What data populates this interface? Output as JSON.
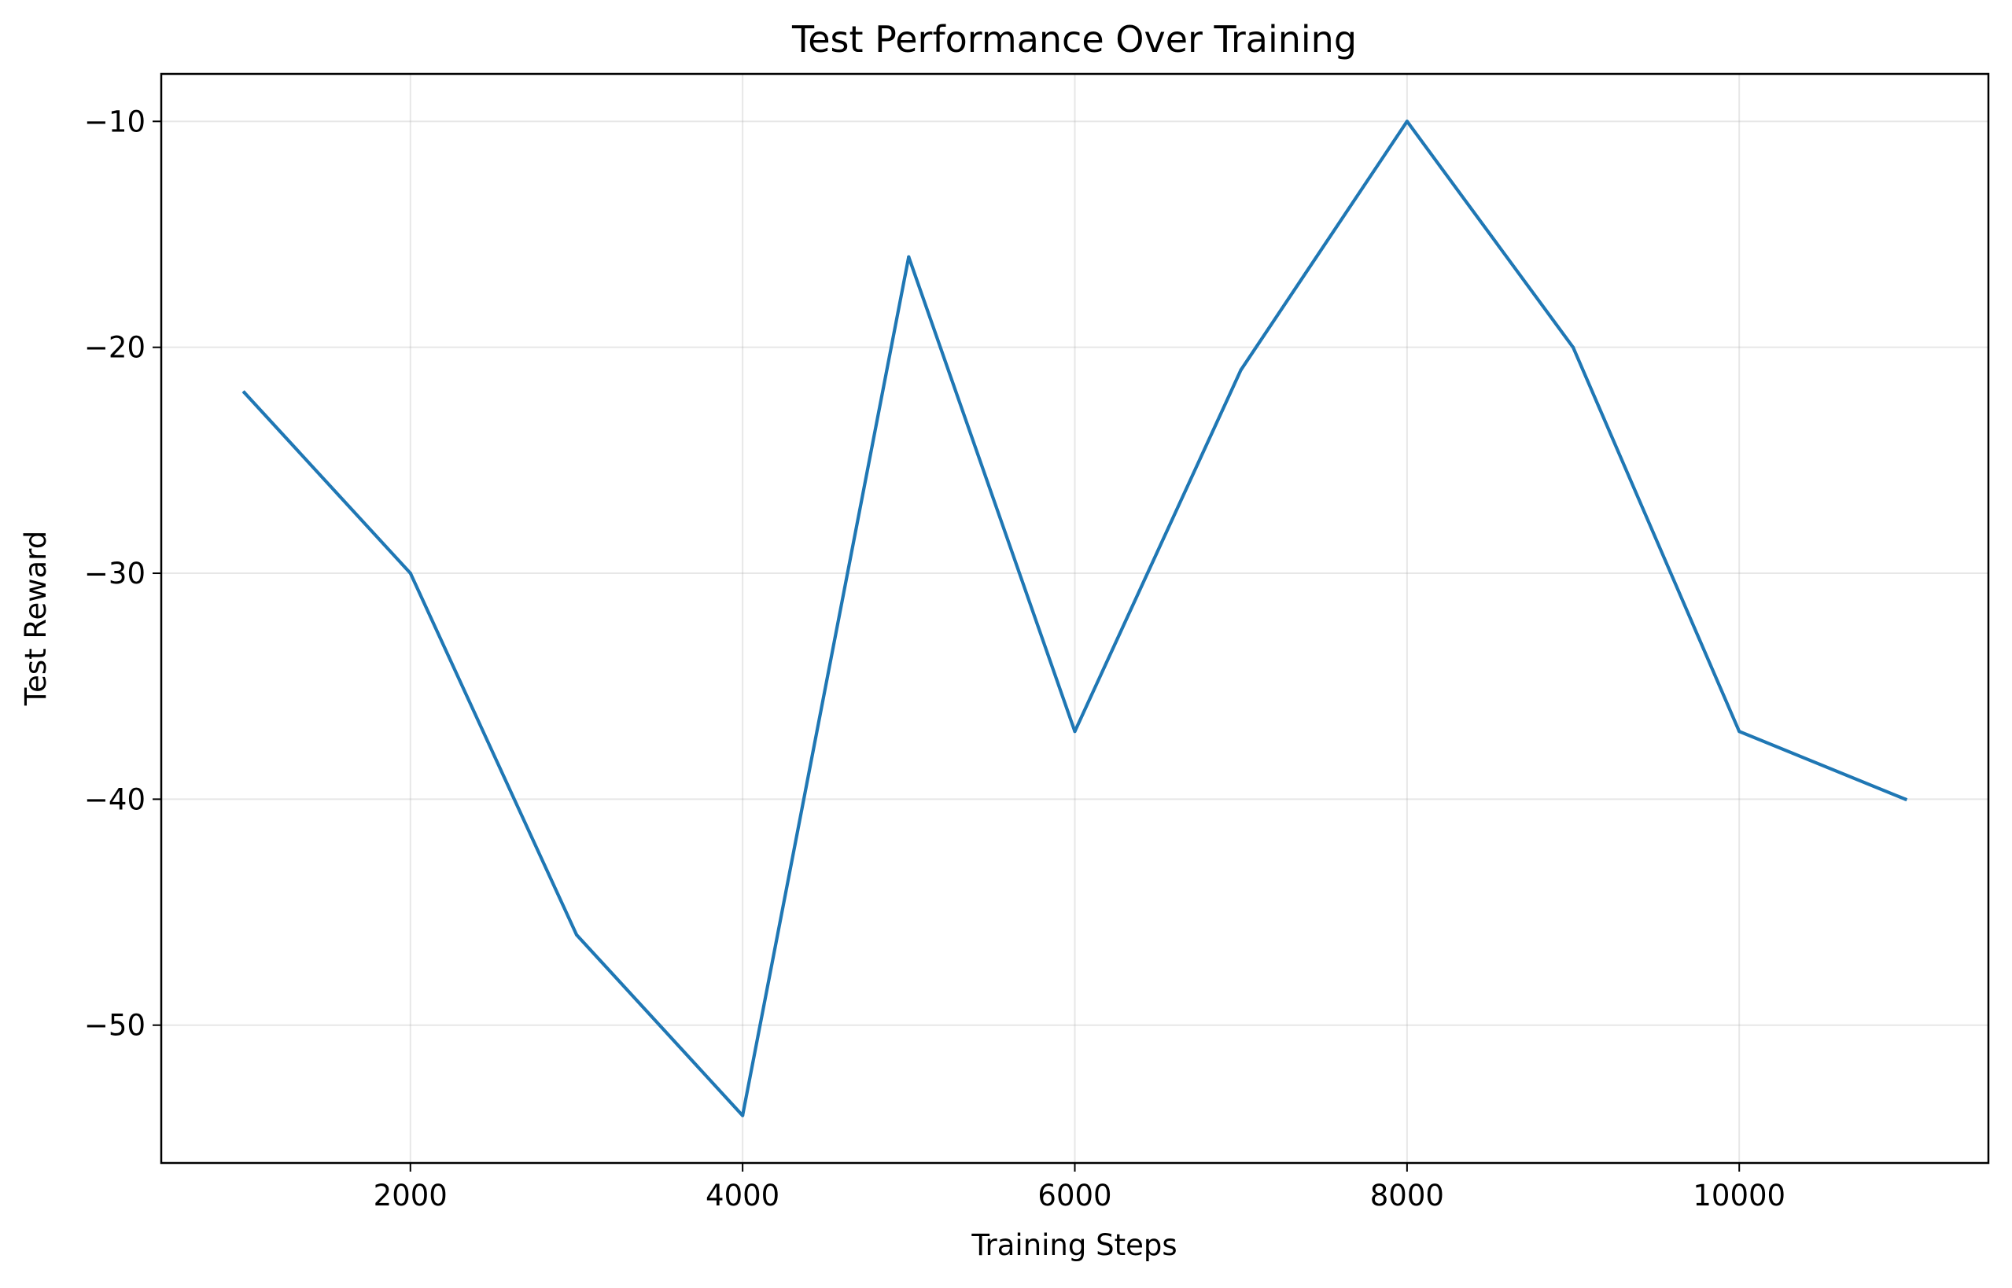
{
  "chart_data": {
    "type": "line",
    "title": "Test Performance Over Training",
    "xlabel": "Training Steps",
    "ylabel": "Test Reward",
    "xlim": [
      500,
      11500
    ],
    "ylim": [
      -56.1,
      -7.9
    ],
    "xticks": [
      2000,
      4000,
      6000,
      8000,
      10000
    ],
    "yticks": [
      -50,
      -40,
      -30,
      -20,
      -10
    ],
    "xtick_labels": [
      "2000",
      "4000",
      "6000",
      "8000",
      "10000"
    ],
    "ytick_labels": [
      "−50",
      "−40",
      "−30",
      "−20",
      "−10"
    ],
    "grid": true,
    "series": [
      {
        "color": "#1f77b4",
        "x": [
          1000,
          2000,
          3000,
          4000,
          5000,
          6000,
          7000,
          8000,
          9000,
          10000,
          11000
        ],
        "y": [
          -22,
          -30,
          -46,
          -54,
          -16,
          -37,
          -21,
          -10,
          -20,
          -37,
          -40
        ]
      }
    ]
  }
}
